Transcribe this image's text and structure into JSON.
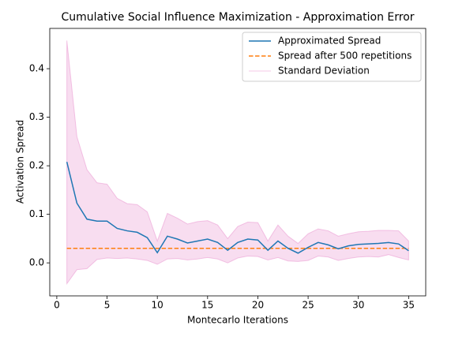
{
  "chart_data": {
    "type": "line",
    "title": "Cumulative Social Influence Maximization - Approximation Error",
    "x_label": "Montecarlo Iterations",
    "y_label": "Activation Spread",
    "x": [
      1,
      2,
      3,
      4,
      5,
      6,
      7,
      8,
      9,
      10,
      11,
      12,
      13,
      14,
      15,
      16,
      17,
      18,
      19,
      20,
      21,
      22,
      23,
      24,
      25,
      26,
      27,
      28,
      29,
      30,
      31,
      32,
      33,
      34,
      35
    ],
    "series": [
      {
        "name": "Approximated Spread",
        "color": "#1f77b4",
        "style": "solid",
        "values": [
          0.208,
          0.123,
          0.09,
          0.086,
          0.086,
          0.071,
          0.066,
          0.063,
          0.052,
          0.021,
          0.055,
          0.049,
          0.041,
          0.045,
          0.049,
          0.042,
          0.026,
          0.042,
          0.049,
          0.047,
          0.026,
          0.045,
          0.03,
          0.02,
          0.032,
          0.042,
          0.037,
          0.029,
          0.035,
          0.038,
          0.039,
          0.04,
          0.042,
          0.039,
          0.025
        ]
      },
      {
        "name": "Spread after 500 repetitions",
        "color": "#ff7f0e",
        "style": "dashed",
        "value": 0.03
      },
      {
        "name": "Standard Deviation",
        "color": "#e377c2",
        "style": "band",
        "upper": [
          0.458,
          0.26,
          0.192,
          0.165,
          0.162,
          0.133,
          0.122,
          0.12,
          0.105,
          0.045,
          0.102,
          0.092,
          0.08,
          0.085,
          0.087,
          0.078,
          0.05,
          0.075,
          0.084,
          0.083,
          0.045,
          0.078,
          0.055,
          0.04,
          0.06,
          0.07,
          0.066,
          0.055,
          0.06,
          0.064,
          0.065,
          0.067,
          0.067,
          0.066,
          0.045
        ],
        "lower": [
          -0.043,
          -0.014,
          -0.012,
          0.007,
          0.01,
          0.009,
          0.01,
          0.008,
          0.005,
          -0.003,
          0.008,
          0.009,
          0.006,
          0.008,
          0.011,
          0.008,
          0.0,
          0.01,
          0.014,
          0.013,
          0.006,
          0.011,
          0.004,
          0.003,
          0.005,
          0.014,
          0.012,
          0.005,
          0.009,
          0.012,
          0.013,
          0.012,
          0.017,
          0.011,
          0.006
        ]
      }
    ],
    "xlim": [
      -0.7,
      36.7
    ],
    "xticks": [
      0,
      5,
      10,
      15,
      20,
      25,
      30,
      35
    ],
    "ylim": [
      -0.068,
      0.483
    ],
    "yticks": [
      {
        "value": 0,
        "label": "0.0"
      },
      0.1,
      0.2,
      0.3,
      0.4
    ],
    "legend": "upper right",
    "grid": false
  }
}
